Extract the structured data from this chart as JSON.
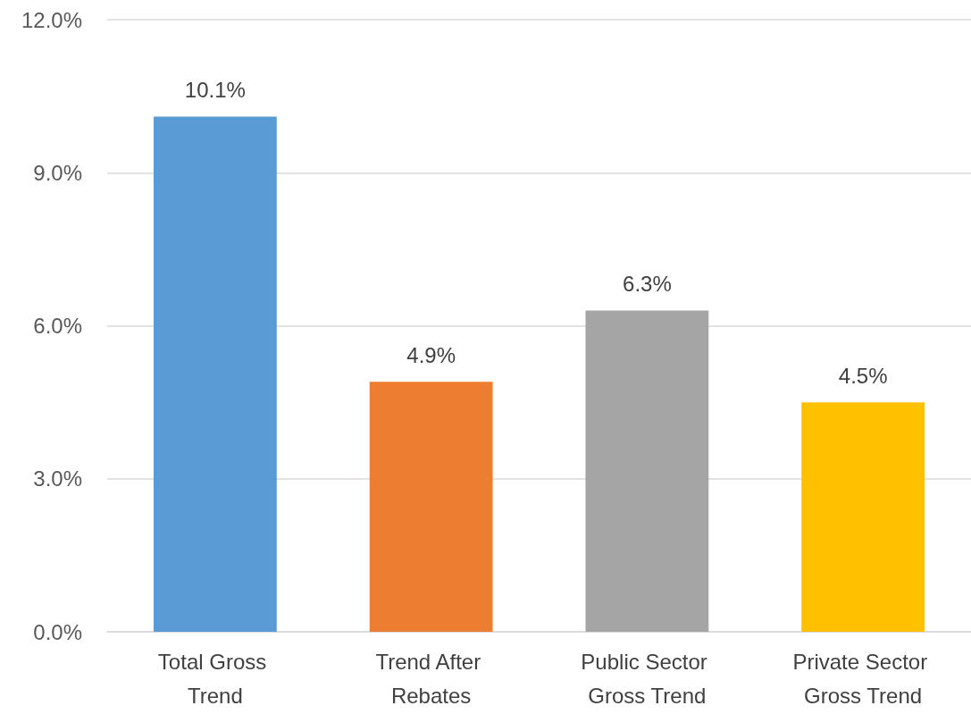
{
  "chart_data": {
    "type": "bar",
    "categories": [
      "Total Gross Trend",
      "Trend After Rebates",
      "Public Sector Gross Trend",
      "Private Sector Gross Trend"
    ],
    "values": [
      10.1,
      4.9,
      6.3,
      4.5
    ],
    "colors": [
      "#5b9bd5",
      "#ed7d31",
      "#a5a5a5",
      "#ffc000"
    ],
    "value_labels": [
      "10.1%",
      "4.9%",
      "6.3%",
      "4.5%"
    ],
    "ylim": [
      0,
      12
    ],
    "yticks": [
      {
        "value": 0,
        "label": "0.0%"
      },
      {
        "value": 3,
        "label": "3.0%"
      },
      {
        "value": 6,
        "label": "6.0%"
      },
      {
        "value": 9,
        "label": "9.0%"
      },
      {
        "value": 12,
        "label": "12.0%"
      }
    ],
    "grid": "y"
  }
}
